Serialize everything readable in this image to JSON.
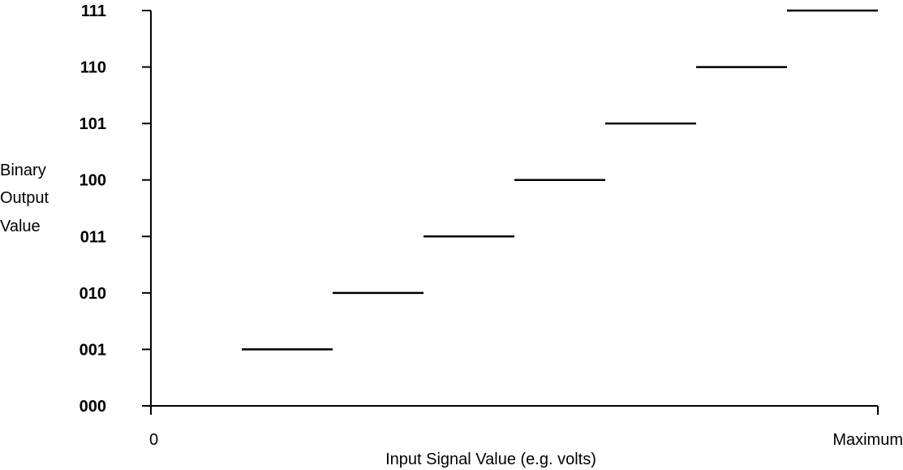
{
  "chart_data": {
    "type": "line",
    "xlabel": "Input Signal Value (e.g. volts)",
    "ylabel": [
      "Binary",
      "Output",
      "Value"
    ],
    "x_tick_labels": [
      "0",
      "Maximum"
    ],
    "y_tick_labels": [
      "000",
      "001",
      "010",
      "011",
      "100",
      "101",
      "110",
      "111"
    ],
    "xlim": [
      0,
      8
    ],
    "ylim": [
      0,
      7
    ],
    "grid": false,
    "series": [
      {
        "segments": [
          {
            "x": [
              1,
              2
            ],
            "y": 1
          },
          {
            "x": [
              2,
              3
            ],
            "y": 2
          },
          {
            "x": [
              3,
              4
            ],
            "y": 3
          },
          {
            "x": [
              4,
              5
            ],
            "y": 4
          },
          {
            "x": [
              5,
              6
            ],
            "y": 5
          },
          {
            "x": [
              6,
              7
            ],
            "y": 6
          },
          {
            "x": [
              7,
              8
            ],
            "y": 7
          }
        ]
      }
    ]
  }
}
